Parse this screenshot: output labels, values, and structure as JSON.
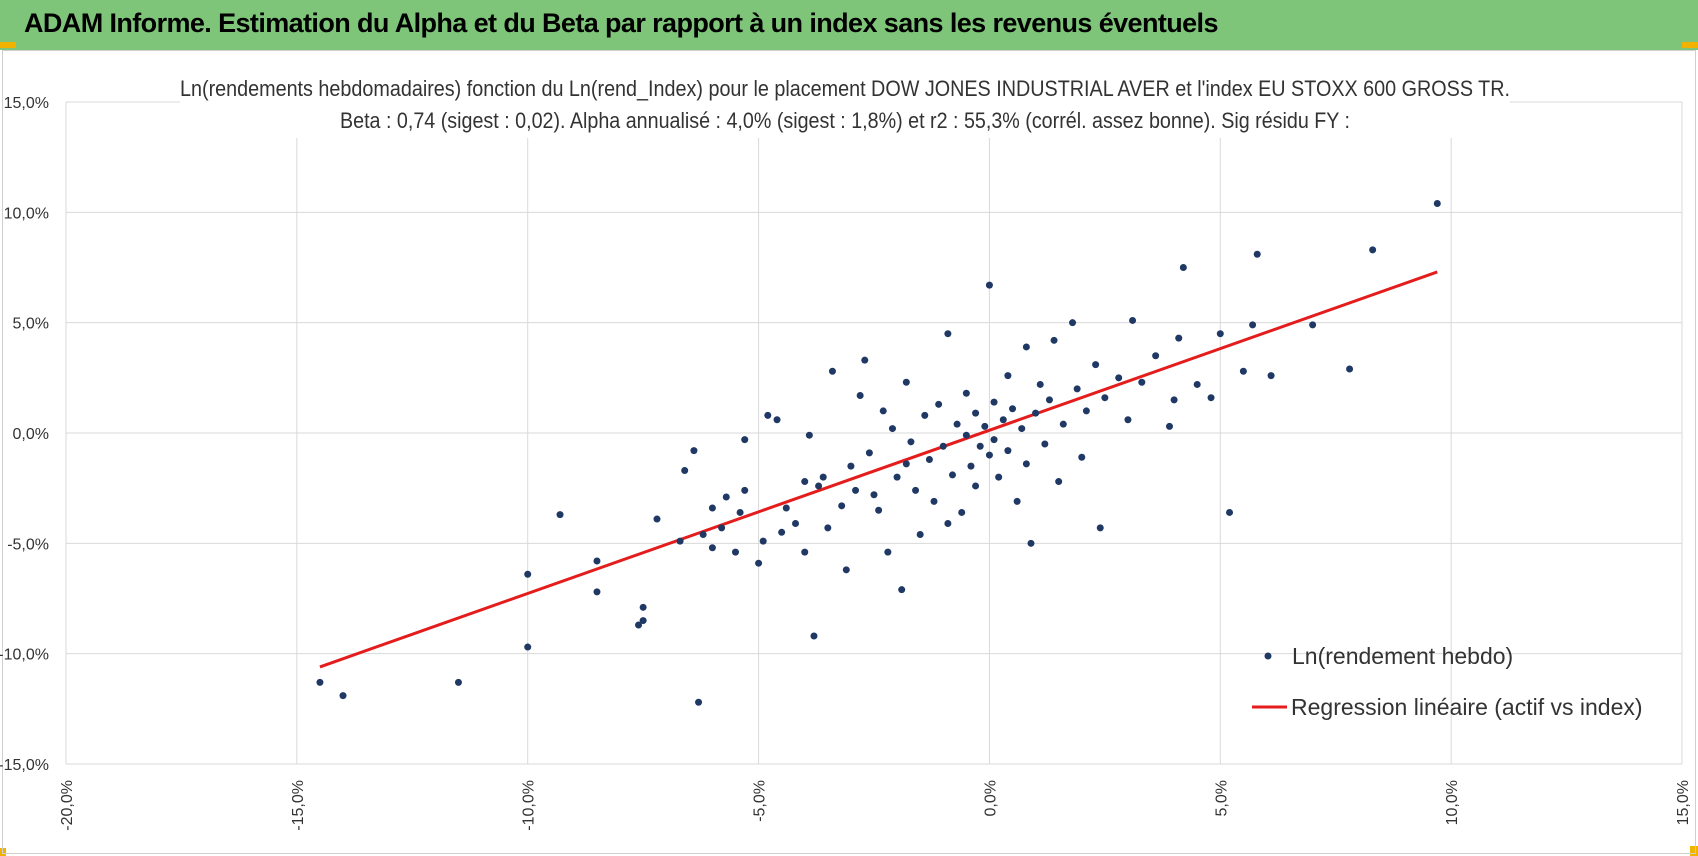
{
  "banner": {
    "title": "ADAM Informe. Estimation du Alpha et du Beta par rapport à un index sans les revenus éventuels",
    "color": "#7ec57a",
    "corner_color": "#f2b300"
  },
  "chart_data": {
    "type": "scatter",
    "title": "Ln(rendements hebdomadaires) fonction du Ln(rend_Index) pour le placement DOW JONES INDUSTRIAL AVER et l'index EU STOXX 600 GROSS TR.",
    "subtitle": "Beta : 0,74 (sigest : 0,02). Alpha annualisé : 4,0% (sigest : 1,8%) et r2 : 55,3% (corrél. assez bonne). Sig résidu FY :",
    "xlabel": "",
    "ylabel": "",
    "xlim": [
      -20,
      15
    ],
    "ylim": [
      -15,
      15
    ],
    "x_ticks": [
      -20,
      -15,
      -10,
      -5,
      0,
      5,
      10,
      15
    ],
    "y_ticks": [
      -15,
      10,
      5,
      0,
      -5,
      -10,
      15
    ],
    "x_tick_labels": [
      "-20,0%",
      "-15,0%",
      "-10,0%",
      "-5,0%",
      "0,0%",
      "5,0%",
      "10,0%",
      "15,0%"
    ],
    "y_tick_labels": [
      "-15,0%",
      "10,0%",
      "5,0%",
      "0,0%",
      "-5,0%",
      "-10,0%",
      "15,0%"
    ],
    "grid": true,
    "legend_position": "bottom-right",
    "series": [
      {
        "name": "Ln(rendement hebdo)",
        "kind": "scatter",
        "color": "#1f3864",
        "points": [
          [
            -14.5,
            -11.3
          ],
          [
            -14.0,
            -11.9
          ],
          [
            -11.5,
            -11.3
          ],
          [
            -10.0,
            -9.7
          ],
          [
            -10.0,
            -6.4
          ],
          [
            -9.3,
            -3.7
          ],
          [
            -8.5,
            -5.8
          ],
          [
            -8.5,
            -7.2
          ],
          [
            -7.6,
            -8.7
          ],
          [
            -7.5,
            -8.5
          ],
          [
            -7.5,
            -7.9
          ],
          [
            -7.2,
            -3.9
          ],
          [
            -6.7,
            -4.9
          ],
          [
            -6.6,
            -1.7
          ],
          [
            -6.4,
            -0.8
          ],
          [
            -6.3,
            -12.2
          ],
          [
            -6.2,
            -4.6
          ],
          [
            -6.0,
            -3.4
          ],
          [
            -6.0,
            -5.2
          ],
          [
            -5.8,
            -4.3
          ],
          [
            -5.7,
            -2.9
          ],
          [
            -5.5,
            -5.4
          ],
          [
            -5.4,
            -3.6
          ],
          [
            -5.3,
            -0.3
          ],
          [
            -5.3,
            -2.6
          ],
          [
            -5.0,
            -5.9
          ],
          [
            -4.9,
            -4.9
          ],
          [
            -4.8,
            0.8
          ],
          [
            -4.6,
            0.6
          ],
          [
            -4.5,
            -4.5
          ],
          [
            -4.4,
            -3.4
          ],
          [
            -4.2,
            -4.1
          ],
          [
            -4.0,
            -5.4
          ],
          [
            -4.0,
            -2.2
          ],
          [
            -3.9,
            -0.1
          ],
          [
            -3.8,
            -9.2
          ],
          [
            -3.7,
            -2.4
          ],
          [
            -3.6,
            -2.0
          ],
          [
            -3.5,
            -4.3
          ],
          [
            -3.4,
            2.8
          ],
          [
            -3.2,
            -3.3
          ],
          [
            -3.1,
            -6.2
          ],
          [
            -3.0,
            -1.5
          ],
          [
            -2.9,
            -2.6
          ],
          [
            -2.8,
            1.7
          ],
          [
            -2.7,
            3.3
          ],
          [
            -2.6,
            -0.9
          ],
          [
            -2.5,
            -2.8
          ],
          [
            -2.4,
            -3.5
          ],
          [
            -2.3,
            1.0
          ],
          [
            -2.2,
            -5.4
          ],
          [
            -2.1,
            0.2
          ],
          [
            -2.0,
            -2.0
          ],
          [
            -1.9,
            -7.1
          ],
          [
            -1.8,
            2.3
          ],
          [
            -1.8,
            -1.4
          ],
          [
            -1.7,
            -0.4
          ],
          [
            -1.6,
            -2.6
          ],
          [
            -1.5,
            -4.6
          ],
          [
            -1.4,
            0.8
          ],
          [
            -1.3,
            -1.2
          ],
          [
            -1.2,
            -3.1
          ],
          [
            -1.1,
            1.3
          ],
          [
            -1.0,
            -0.6
          ],
          [
            -0.9,
            4.5
          ],
          [
            -0.9,
            -4.1
          ],
          [
            -0.8,
            -1.9
          ],
          [
            -0.7,
            0.4
          ],
          [
            -0.6,
            -3.6
          ],
          [
            -0.5,
            -0.1
          ],
          [
            -0.5,
            1.8
          ],
          [
            -0.4,
            -1.5
          ],
          [
            -0.3,
            0.9
          ],
          [
            -0.3,
            -2.4
          ],
          [
            -0.2,
            -0.6
          ],
          [
            -0.1,
            0.3
          ],
          [
            0.0,
            -1.0
          ],
          [
            0.0,
            6.7
          ],
          [
            0.1,
            1.4
          ],
          [
            0.1,
            -0.3
          ],
          [
            0.2,
            -2.0
          ],
          [
            0.3,
            0.6
          ],
          [
            0.4,
            2.6
          ],
          [
            0.4,
            -0.8
          ],
          [
            0.5,
            1.1
          ],
          [
            0.6,
            -3.1
          ],
          [
            0.7,
            0.2
          ],
          [
            0.8,
            3.9
          ],
          [
            0.8,
            -1.4
          ],
          [
            0.9,
            -5.0
          ],
          [
            1.0,
            0.9
          ],
          [
            1.1,
            2.2
          ],
          [
            1.2,
            -0.5
          ],
          [
            1.3,
            1.5
          ],
          [
            1.4,
            4.2
          ],
          [
            1.5,
            -2.2
          ],
          [
            1.6,
            0.4
          ],
          [
            1.8,
            5.0
          ],
          [
            1.9,
            2.0
          ],
          [
            2.0,
            -1.1
          ],
          [
            2.1,
            1.0
          ],
          [
            2.3,
            3.1
          ],
          [
            2.4,
            -4.3
          ],
          [
            2.5,
            1.6
          ],
          [
            2.8,
            2.5
          ],
          [
            3.0,
            0.6
          ],
          [
            3.1,
            5.1
          ],
          [
            3.3,
            2.3
          ],
          [
            3.6,
            3.5
          ],
          [
            3.9,
            0.3
          ],
          [
            4.0,
            1.5
          ],
          [
            4.1,
            4.3
          ],
          [
            4.2,
            7.5
          ],
          [
            4.5,
            2.2
          ],
          [
            4.8,
            1.6
          ],
          [
            5.0,
            4.5
          ],
          [
            5.2,
            -3.6
          ],
          [
            5.5,
            2.8
          ],
          [
            5.7,
            4.9
          ],
          [
            5.8,
            8.1
          ],
          [
            6.1,
            2.6
          ],
          [
            7.0,
            4.9
          ],
          [
            7.8,
            2.9
          ],
          [
            8.3,
            8.3
          ],
          [
            9.7,
            10.4
          ]
        ]
      },
      {
        "name": "Regression linéaire (actif vs index)",
        "kind": "line",
        "color": "#e41c1c",
        "x": [
          -14.5,
          9.7
        ],
        "y": [
          -10.6,
          7.3
        ]
      }
    ]
  }
}
